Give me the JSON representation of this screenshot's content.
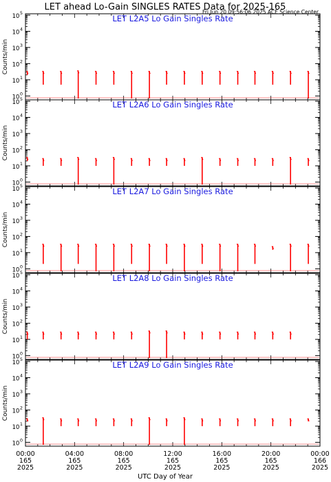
{
  "header": {
    "title": "LET ahead Lo-Gain SINGLES RATES Data for 2025-165",
    "timestamp": "Fri Jun 20 09:56:06 2025 ACE Science Center"
  },
  "colors": {
    "data": "#ff0000",
    "title": "#1a1adf",
    "axis": "#000000"
  },
  "x_axis": {
    "label": "UTC Day of Year",
    "range": [
      0,
      24
    ],
    "ticks": [
      {
        "hour": 0,
        "time": "00:00",
        "doy": "165",
        "year": "2025"
      },
      {
        "hour": 4,
        "time": "04:00",
        "doy": "165",
        "year": "2025"
      },
      {
        "hour": 8,
        "time": "08:00",
        "doy": "165",
        "year": "2025"
      },
      {
        "hour": 12,
        "time": "12:00",
        "doy": "165",
        "year": "2025"
      },
      {
        "hour": 16,
        "time": "16:00",
        "doy": "165",
        "year": "2025"
      },
      {
        "hour": 20,
        "time": "20:00",
        "doy": "165",
        "year": "2025"
      },
      {
        "hour": 24,
        "time": "00:00",
        "doy": "166",
        "year": "2025"
      }
    ]
  },
  "y_axis": {
    "label": "Counts/min",
    "scale": "log",
    "range": [
      0.7,
      100000
    ],
    "ticks": [
      {
        "value": 1,
        "base": "10",
        "exp": "0"
      },
      {
        "value": 10,
        "base": "10",
        "exp": "1"
      },
      {
        "value": 100,
        "base": "10",
        "exp": "2"
      },
      {
        "value": 1000,
        "base": "10",
        "exp": "3"
      },
      {
        "value": 10000,
        "base": "10",
        "exp": "4"
      },
      {
        "value": 100000,
        "base": "10",
        "exp": "5"
      }
    ]
  },
  "chart_data": [
    {
      "type": "line",
      "title": "LET L2A5 Lo Gain Singles Rate",
      "bursts": [
        {
          "t": 0.15,
          "min": 20,
          "max": 35
        },
        {
          "t": 1.45,
          "min": 5,
          "max": 35
        },
        {
          "t": 2.9,
          "min": 5,
          "max": 35
        },
        {
          "t": 4.3,
          "min": 0.7,
          "max": 38
        },
        {
          "t": 5.75,
          "min": 5,
          "max": 35
        },
        {
          "t": 7.2,
          "min": 5,
          "max": 35
        },
        {
          "t": 8.65,
          "min": 0.7,
          "max": 35
        },
        {
          "t": 10.1,
          "min": 0.7,
          "max": 35
        },
        {
          "t": 11.5,
          "min": 5,
          "max": 35
        },
        {
          "t": 12.95,
          "min": 5,
          "max": 35
        },
        {
          "t": 14.4,
          "min": 5,
          "max": 35
        },
        {
          "t": 15.85,
          "min": 5,
          "max": 35
        },
        {
          "t": 17.3,
          "min": 5,
          "max": 35
        },
        {
          "t": 18.7,
          "min": 5,
          "max": 35
        },
        {
          "t": 20.15,
          "min": 5,
          "max": 35
        },
        {
          "t": 21.6,
          "min": 5,
          "max": 35
        },
        {
          "t": 23.05,
          "min": 0.7,
          "max": 35
        }
      ]
    },
    {
      "type": "line",
      "title": "LET L2A6 Lo Gain Singles Rate",
      "bursts": [
        {
          "t": 0.15,
          "min": 20,
          "max": 35
        },
        {
          "t": 1.45,
          "min": 10,
          "max": 30
        },
        {
          "t": 2.9,
          "min": 10,
          "max": 30
        },
        {
          "t": 4.3,
          "min": 0.7,
          "max": 35
        },
        {
          "t": 5.75,
          "min": 10,
          "max": 30
        },
        {
          "t": 7.2,
          "min": 0.7,
          "max": 35
        },
        {
          "t": 8.65,
          "min": 10,
          "max": 30
        },
        {
          "t": 10.1,
          "min": 10,
          "max": 30
        },
        {
          "t": 11.5,
          "min": 10,
          "max": 30
        },
        {
          "t": 12.95,
          "min": 10,
          "max": 30
        },
        {
          "t": 14.4,
          "min": 0.7,
          "max": 35
        },
        {
          "t": 15.85,
          "min": 10,
          "max": 30
        },
        {
          "t": 17.3,
          "min": 10,
          "max": 30
        },
        {
          "t": 18.7,
          "min": 10,
          "max": 30
        },
        {
          "t": 20.15,
          "min": 10,
          "max": 30
        },
        {
          "t": 21.6,
          "min": 0.7,
          "max": 35
        },
        {
          "t": 23.05,
          "min": 10,
          "max": 30
        }
      ]
    },
    {
      "type": "line",
      "title": "LET L2A7 Lo Gain Singles Rate",
      "bursts": [
        {
          "t": 1.45,
          "min": 2,
          "max": 35
        },
        {
          "t": 2.9,
          "min": 0.7,
          "max": 35
        },
        {
          "t": 4.3,
          "min": 2,
          "max": 35
        },
        {
          "t": 5.75,
          "min": 0.7,
          "max": 35
        },
        {
          "t": 7.2,
          "min": 0.7,
          "max": 35
        },
        {
          "t": 8.65,
          "min": 2,
          "max": 35
        },
        {
          "t": 10.1,
          "min": 0.7,
          "max": 35
        },
        {
          "t": 11.5,
          "min": 2,
          "max": 35
        },
        {
          "t": 12.95,
          "min": 0.7,
          "max": 35
        },
        {
          "t": 14.4,
          "min": 2,
          "max": 35
        },
        {
          "t": 15.85,
          "min": 0.7,
          "max": 35
        },
        {
          "t": 17.3,
          "min": 0.7,
          "max": 35
        },
        {
          "t": 18.7,
          "min": 2,
          "max": 35
        },
        {
          "t": 20.15,
          "min": 15,
          "max": 25
        },
        {
          "t": 21.6,
          "min": 0.7,
          "max": 35
        },
        {
          "t": 23.05,
          "min": 2,
          "max": 35
        }
      ]
    },
    {
      "type": "line",
      "title": "LET L2A8 Lo Gain Singles Rate",
      "bursts": [
        {
          "t": 0.15,
          "min": 10,
          "max": 30
        },
        {
          "t": 1.45,
          "min": 10,
          "max": 30
        },
        {
          "t": 2.9,
          "min": 10,
          "max": 30
        },
        {
          "t": 4.3,
          "min": 10,
          "max": 30
        },
        {
          "t": 5.75,
          "min": 10,
          "max": 30
        },
        {
          "t": 7.2,
          "min": 10,
          "max": 30
        },
        {
          "t": 8.65,
          "min": 10,
          "max": 30
        },
        {
          "t": 10.1,
          "min": 0.7,
          "max": 35
        },
        {
          "t": 11.5,
          "min": 0.7,
          "max": 35
        },
        {
          "t": 12.95,
          "min": 10,
          "max": 30
        },
        {
          "t": 14.4,
          "min": 10,
          "max": 30
        },
        {
          "t": 15.85,
          "min": 10,
          "max": 30
        },
        {
          "t": 17.3,
          "min": 10,
          "max": 30
        },
        {
          "t": 18.7,
          "min": 10,
          "max": 30
        },
        {
          "t": 20.15,
          "min": 10,
          "max": 30
        },
        {
          "t": 21.6,
          "min": 10,
          "max": 30
        }
      ]
    },
    {
      "type": "line",
      "title": "LET L2A9 Lo Gain Singles Rate",
      "bursts": [
        {
          "t": 0.15,
          "min": 20,
          "max": 30
        },
        {
          "t": 1.45,
          "min": 0.7,
          "max": 35
        },
        {
          "t": 2.9,
          "min": 10,
          "max": 30
        },
        {
          "t": 4.3,
          "min": 10,
          "max": 30
        },
        {
          "t": 5.75,
          "min": 10,
          "max": 30
        },
        {
          "t": 7.2,
          "min": 10,
          "max": 30
        },
        {
          "t": 8.65,
          "min": 10,
          "max": 30
        },
        {
          "t": 10.1,
          "min": 0.7,
          "max": 35
        },
        {
          "t": 11.5,
          "min": 10,
          "max": 30
        },
        {
          "t": 12.95,
          "min": 0.7,
          "max": 35
        },
        {
          "t": 14.4,
          "min": 10,
          "max": 30
        },
        {
          "t": 15.85,
          "min": 10,
          "max": 30
        },
        {
          "t": 17.3,
          "min": 10,
          "max": 30
        },
        {
          "t": 18.7,
          "min": 10,
          "max": 30
        },
        {
          "t": 20.15,
          "min": 10,
          "max": 30
        },
        {
          "t": 21.6,
          "min": 10,
          "max": 30
        },
        {
          "t": 23.05,
          "min": 20,
          "max": 30
        }
      ]
    }
  ]
}
